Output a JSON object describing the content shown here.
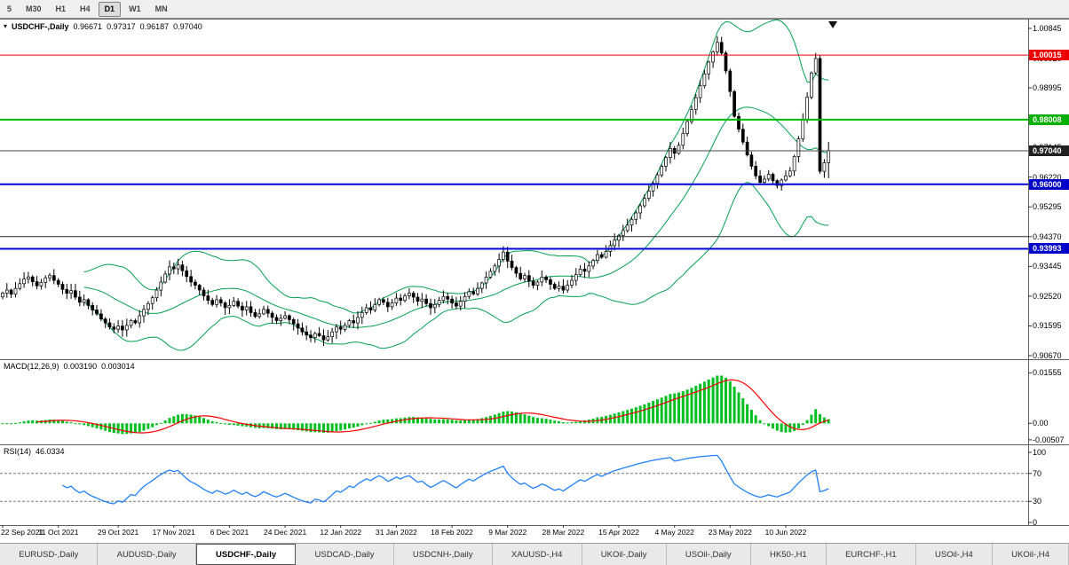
{
  "toolbar": {
    "periods": [
      {
        "label": "5",
        "active": false
      },
      {
        "label": "M30",
        "active": false
      },
      {
        "label": "H1",
        "active": false
      },
      {
        "label": "H4",
        "active": false
      },
      {
        "label": "D1",
        "active": true
      },
      {
        "label": "W1",
        "active": false
      },
      {
        "label": "MN",
        "active": false
      }
    ]
  },
  "colors": {
    "bull_candle": "#ffffff",
    "bear_candle": "#000000",
    "candle_outline": "#000000",
    "bollinger": "#00a050",
    "macd_histogram": "#00c020",
    "macd_signal": "#ff0000",
    "rsi_line": "#2080ff",
    "level_dashed": "#777777",
    "separator": "#606060",
    "current_price_line": "#444444"
  },
  "chart_data": {
    "type": "candlestick",
    "symbol": "USDCHF-",
    "timeframe": "Daily",
    "header": {
      "symbol": "USDCHF-,Daily",
      "open": "0.96671",
      "high": "0.97317",
      "low": "0.96187",
      "close": "0.97040"
    },
    "last_bar": {
      "open": 0.96671,
      "high": 0.97317,
      "low": 0.96187,
      "close": 0.9704
    },
    "closes": [
      0.9262,
      0.9271,
      0.9258,
      0.9276,
      0.9291,
      0.9305,
      0.9312,
      0.9297,
      0.9284,
      0.9295,
      0.9309,
      0.9316,
      0.9301,
      0.9289,
      0.9273,
      0.9261,
      0.9269,
      0.9249,
      0.9233,
      0.9241,
      0.9223,
      0.9209,
      0.9197,
      0.9181,
      0.9169,
      0.9156,
      0.9149,
      0.9159,
      0.9147,
      0.9161,
      0.9176,
      0.9169,
      0.9191,
      0.9211,
      0.9229,
      0.9247,
      0.9271,
      0.9296,
      0.9321,
      0.9343,
      0.9337,
      0.9349,
      0.9331,
      0.9313,
      0.9296,
      0.9286,
      0.9271,
      0.9253,
      0.9239,
      0.9226,
      0.9241,
      0.9231,
      0.9216,
      0.9223,
      0.9236,
      0.9221,
      0.9209,
      0.9219,
      0.9201,
      0.9189,
      0.9197,
      0.9211,
      0.9199,
      0.9186,
      0.9176,
      0.9183,
      0.9191,
      0.9179,
      0.9166,
      0.9153,
      0.9141,
      0.9131,
      0.9123,
      0.9136,
      0.9129,
      0.9116,
      0.9126,
      0.9141,
      0.9156,
      0.9149,
      0.9161,
      0.9176,
      0.9169,
      0.9186,
      0.9201,
      0.9216,
      0.9209,
      0.9226,
      0.9241,
      0.9233,
      0.9219,
      0.9231,
      0.9246,
      0.9239,
      0.9253,
      0.9261,
      0.9249,
      0.9236,
      0.9243,
      0.9229,
      0.9216,
      0.9226,
      0.9239,
      0.9251,
      0.9243,
      0.9231,
      0.9221,
      0.9236,
      0.9251,
      0.9266,
      0.9259,
      0.9276,
      0.9293,
      0.9311,
      0.9329,
      0.9346,
      0.9366,
      0.9389,
      0.9361,
      0.9341,
      0.9323,
      0.9306,
      0.9316,
      0.9299,
      0.9286,
      0.9296,
      0.9311,
      0.9303,
      0.9289,
      0.9276,
      0.9283,
      0.9271,
      0.9286,
      0.9301,
      0.9319,
      0.9336,
      0.9329,
      0.9346,
      0.9363,
      0.9381,
      0.9373,
      0.9391,
      0.9409,
      0.9426,
      0.9441,
      0.9456,
      0.9473,
      0.9491,
      0.9511,
      0.9533,
      0.9556,
      0.9579,
      0.9603,
      0.9629,
      0.9656,
      0.9683,
      0.9711,
      0.9696,
      0.9721,
      0.9758,
      0.9795,
      0.9832,
      0.9869,
      0.9906,
      0.9943,
      0.998,
      1.0012,
      1.0041,
      1.0008,
      0.9952,
      0.9888,
      0.9811,
      0.9771,
      0.9731,
      0.9691,
      0.9656,
      0.9626,
      0.9606,
      0.9616,
      0.9631,
      0.9611,
      0.9596,
      0.9613,
      0.9626,
      0.9641,
      0.9686,
      0.9741,
      0.9801,
      0.9871,
      0.9946,
      0.9991,
      0.964,
      0.9667,
      0.9704
    ],
    "x_labels": [
      {
        "i": 0,
        "label": "22 Sep 2021"
      },
      {
        "i": 13,
        "label": "11 Oct 2021"
      },
      {
        "i": 27,
        "label": "29 Oct 2021"
      },
      {
        "i": 40,
        "label": "17 Nov 2021"
      },
      {
        "i": 53,
        "label": "6 Dec 2021"
      },
      {
        "i": 66,
        "label": "24 Dec 2021"
      },
      {
        "i": 79,
        "label": "12 Jan 2022"
      },
      {
        "i": 92,
        "label": "31 Jan 2022"
      },
      {
        "i": 105,
        "label": "18 Feb 2022"
      },
      {
        "i": 118,
        "label": "9 Mar 2022"
      },
      {
        "i": 131,
        "label": "28 Mar 2022"
      },
      {
        "i": 144,
        "label": "15 Apr 2022"
      },
      {
        "i": 157,
        "label": "4 May 2022"
      },
      {
        "i": 170,
        "label": "23 May 2022"
      },
      {
        "i": 183,
        "label": "10 Jun 2022"
      }
    ],
    "price_axis": {
      "max": 1.0112,
      "min": 0.9056,
      "ticks": [
        "1.00845",
        "0.99920",
        "0.98995",
        "0.98070",
        "0.97145",
        "0.96220",
        "0.95295",
        "0.94370",
        "0.93445",
        "0.92520",
        "0.91595",
        "0.90670"
      ]
    },
    "hlines": [
      {
        "price": 1.00015,
        "label": "1.00015",
        "color": "#ee0000",
        "width": 1,
        "badge_bg": "#ee0000"
      },
      {
        "price": 0.98008,
        "label": "0.98008",
        "color": "#00bb00",
        "width": 2,
        "badge_bg": "#00b000"
      },
      {
        "price": 0.9704,
        "label": "0.97040",
        "color": "#444444",
        "width": 1,
        "badge_bg": "#222222"
      },
      {
        "price": 0.96,
        "label": "0.96000",
        "color": "#0000dd",
        "width": 2,
        "badge_bg": "#0000cc"
      },
      {
        "price": 0.9437,
        "label": null,
        "color": "#222222",
        "width": 1,
        "badge_bg": null
      },
      {
        "price": 0.93993,
        "label": "0.93993",
        "color": "#0000dd",
        "width": 2,
        "badge_bg": "#0000cc"
      }
    ],
    "bollinger": {
      "period": 20,
      "deviation": 2
    },
    "macd": {
      "label": "MACD(12,26,9)",
      "value": "0.003190",
      "signal_value": "0.003014",
      "params": [
        12,
        26,
        9
      ],
      "axis": [
        {
          "value": 0.01555,
          "label": "0.01555"
        },
        {
          "value": 0,
          "label": "0.00"
        },
        {
          "value": -0.00507,
          "label": "-0.00507"
        }
      ]
    },
    "rsi": {
      "label": "RSI(14)",
      "value": "46.0334",
      "period": 14,
      "levels": [
        70,
        30
      ],
      "axis": [
        {
          "value": 100,
          "label": "100"
        },
        {
          "value": 70,
          "label": "70"
        },
        {
          "value": 30,
          "label": "30"
        },
        {
          "value": 0,
          "label": "0"
        }
      ]
    }
  },
  "tabs": [
    {
      "label": "EURUSD-,Daily",
      "active": false
    },
    {
      "label": "AUDUSD-,Daily",
      "active": false
    },
    {
      "label": "USDCHF-,Daily",
      "active": true
    },
    {
      "label": "USDCAD-,Daily",
      "active": false
    },
    {
      "label": "USDCNH-,Daily",
      "active": false
    },
    {
      "label": "XAUUSD-,H4",
      "active": false
    },
    {
      "label": "UKOil-,Daily",
      "active": false
    },
    {
      "label": "USOil-,Daily",
      "active": false
    },
    {
      "label": "HK50-,H1",
      "active": false
    },
    {
      "label": "EURCHF-,H1",
      "active": false
    },
    {
      "label": "USOil-,H4",
      "active": false
    },
    {
      "label": "UKOil-,H4",
      "active": false
    }
  ]
}
